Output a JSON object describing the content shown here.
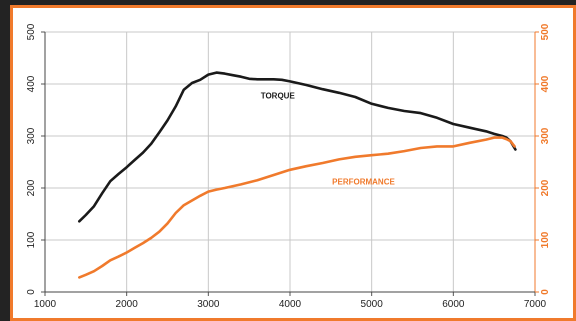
{
  "chart_data": {
    "type": "line",
    "xlim": [
      1000,
      7000
    ],
    "ylim_left": [
      0,
      500
    ],
    "ylim_right": [
      0,
      500
    ],
    "x_ticks": [
      "1000",
      "2000",
      "3000",
      "4000",
      "5000",
      "6000",
      "7000"
    ],
    "y_ticks_left": [
      "0",
      "100",
      "200",
      "300",
      "400",
      "500"
    ],
    "y_ticks_right": [
      "0",
      "100",
      "200",
      "300",
      "400",
      "500"
    ],
    "grid": true,
    "series": [
      {
        "name": "TORQUE",
        "color": "#1a1a1a",
        "x": [
          1420,
          1500,
          1600,
          1700,
          1800,
          1900,
          2000,
          2100,
          2200,
          2300,
          2400,
          2500,
          2600,
          2700,
          2800,
          2900,
          3000,
          3100,
          3200,
          3300,
          3400,
          3500,
          3600,
          3700,
          3800,
          3900,
          4000,
          4200,
          4400,
          4600,
          4800,
          5000,
          5200,
          5400,
          5600,
          5800,
          6000,
          6200,
          6400,
          6500,
          6600,
          6650,
          6700,
          6760
        ],
        "y": [
          136,
          148,
          165,
          190,
          213,
          227,
          240,
          254,
          268,
          285,
          307,
          330,
          357,
          389,
          402,
          408,
          418,
          422,
          420,
          417,
          414,
          410,
          409,
          409,
          409,
          408,
          405,
          398,
          390,
          383,
          375,
          362,
          354,
          348,
          344,
          335,
          323,
          316,
          309,
          304,
          300,
          297,
          290,
          274
        ]
      },
      {
        "name": "PERFORMANCE",
        "color": "#f07a2c",
        "x": [
          1420,
          1500,
          1600,
          1700,
          1800,
          1900,
          2000,
          2100,
          2200,
          2300,
          2400,
          2500,
          2600,
          2700,
          2800,
          2900,
          3000,
          3100,
          3200,
          3400,
          3600,
          3800,
          4000,
          4200,
          4400,
          4600,
          4800,
          5000,
          5200,
          5400,
          5600,
          5800,
          6000,
          6200,
          6400,
          6500,
          6600,
          6650,
          6700,
          6750
        ],
        "y": [
          28,
          33,
          40,
          50,
          61,
          68,
          76,
          85,
          94,
          104,
          116,
          132,
          152,
          167,
          176,
          185,
          193,
          197,
          200,
          207,
          215,
          225,
          235,
          242,
          248,
          255,
          260,
          263,
          266,
          271,
          277,
          280,
          280,
          287,
          293,
          297,
          297,
          294,
          290,
          280
        ]
      }
    ]
  }
}
